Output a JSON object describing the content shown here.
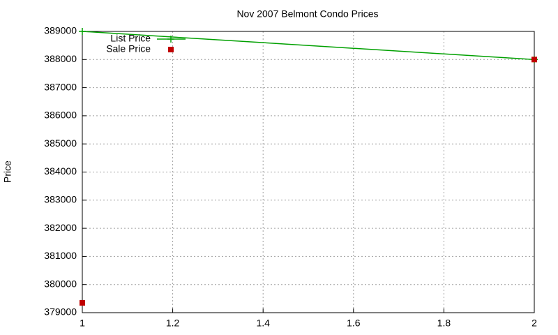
{
  "chart_data": {
    "type": "line",
    "title": "Nov 2007 Belmont Condo Prices",
    "y_label": "Price",
    "x": [
      1,
      2
    ],
    "series": [
      {
        "name": "List Price",
        "color": "#00a000",
        "style": "linespoints",
        "values": [
          389000,
          388000
        ]
      },
      {
        "name": "Sale Price",
        "color": "#c00000",
        "style": "points",
        "values": [
          379350,
          388000
        ]
      }
    ],
    "xlim": [
      1,
      2
    ],
    "xticks": [
      1,
      1.2,
      1.4,
      1.6,
      1.8,
      2
    ],
    "ylim": [
      379000,
      389000
    ],
    "yticks": [
      379000,
      380000,
      381000,
      382000,
      383000,
      384000,
      385000,
      386000,
      387000,
      388000,
      389000
    ],
    "grid": true,
    "legend": "top-left"
  }
}
